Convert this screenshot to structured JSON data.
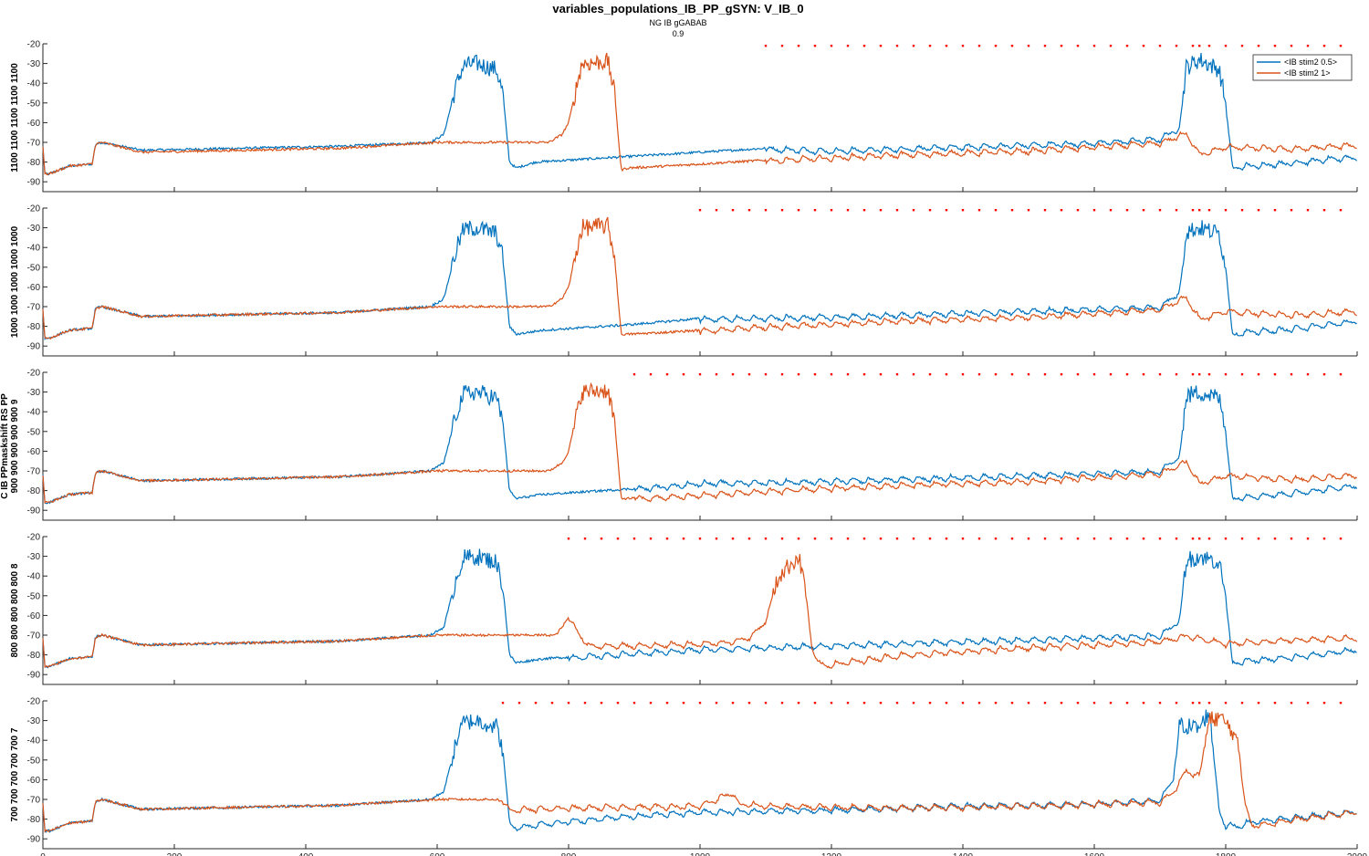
{
  "figure": {
    "title": "variables_populations_IB_PP_gSYN: V_IB_0",
    "subtitle_line1": "NG IB gGABAB",
    "subtitle_line2": "0.9",
    "ylabel_lines": [
      "C IB PPmaskshift RS PP",
      "900 900 900 900 900 9"
    ]
  },
  "chart_data": [
    {
      "type": "line",
      "panel_ylabel": "1100 1100 1100 1100 1100",
      "xlim": [
        0,
        2000
      ],
      "ylim": [
        -95,
        -20
      ],
      "xticks": [
        0,
        200,
        400,
        600,
        800,
        1000,
        1200,
        1400,
        1600,
        1800,
        2000
      ],
      "yticks": [
        -90,
        -80,
        -70,
        -60,
        -50,
        -40,
        -30,
        -20
      ],
      "stim_markers": [
        1100,
        1125,
        1150,
        1175,
        1200,
        1225,
        1250,
        1275,
        1300,
        1325,
        1350,
        1375,
        1400,
        1425,
        1450,
        1475,
        1500,
        1525,
        1550,
        1575,
        1600,
        1625,
        1650,
        1675,
        1700,
        1725,
        1750,
        1760,
        1775,
        1800,
        1825,
        1850,
        1875,
        1900,
        1925,
        1950,
        1975
      ],
      "series": [
        {
          "name": "<IB stim2 0.5>",
          "color": "#0072BD",
          "x": [
            0,
            3,
            10,
            40,
            75,
            80,
            90,
            150,
            300,
            450,
            590,
            610,
            630,
            640,
            660,
            690,
            700,
            710,
            720,
            750,
            900,
            1100,
            1200,
            1400,
            1600,
            1700,
            1730,
            1740,
            1760,
            1790,
            1800,
            1810,
            1820,
            1900,
            2000
          ],
          "y": [
            -72,
            -86,
            -86,
            -82,
            -81,
            -71,
            -70,
            -74,
            -73,
            -72,
            -70,
            -66,
            -40,
            -31,
            -30,
            -33,
            -45,
            -80,
            -83,
            -80,
            -77,
            -73,
            -74,
            -72,
            -70,
            -68,
            -62,
            -32,
            -28,
            -33,
            -50,
            -83,
            -82,
            -80,
            -77
          ]
        },
        {
          "name": "<IB stim2 1>",
          "color": "#D95319",
          "x": [
            0,
            3,
            10,
            40,
            75,
            80,
            90,
            150,
            300,
            450,
            600,
            770,
            790,
            800,
            820,
            860,
            870,
            880,
            890,
            950,
            1100,
            1300,
            1500,
            1700,
            1740,
            1750,
            1760,
            1800,
            1900,
            2000
          ],
          "y": [
            -72,
            -86,
            -86,
            -82,
            -81,
            -71,
            -70,
            -75,
            -74,
            -73,
            -70,
            -70,
            -66,
            -60,
            -30,
            -29,
            -45,
            -84,
            -83,
            -82,
            -79,
            -76,
            -74,
            -70,
            -65,
            -70,
            -76,
            -72,
            -73,
            -71
          ]
        }
      ]
    },
    {
      "type": "line",
      "panel_ylabel": "1000 1000 1000 1000 1000",
      "xlim": [
        0,
        2000
      ],
      "ylim": [
        -95,
        -20
      ],
      "xticks": [
        0,
        200,
        400,
        600,
        800,
        1000,
        1200,
        1400,
        1600,
        1800,
        2000
      ],
      "yticks": [
        -90,
        -80,
        -70,
        -60,
        -50,
        -40,
        -30,
        -20
      ],
      "stim_markers": [
        1000,
        1025,
        1050,
        1075,
        1100,
        1125,
        1150,
        1175,
        1200,
        1225,
        1250,
        1275,
        1300,
        1325,
        1350,
        1375,
        1400,
        1425,
        1450,
        1475,
        1500,
        1525,
        1550,
        1575,
        1600,
        1625,
        1650,
        1675,
        1700,
        1725,
        1750,
        1760,
        1775,
        1800,
        1825,
        1850,
        1875,
        1900,
        1925,
        1950,
        1975
      ],
      "series": [
        {
          "name": "<IB stim2 0.5>",
          "color": "#0072BD",
          "x": [
            0,
            3,
            10,
            40,
            75,
            80,
            90,
            150,
            300,
            450,
            590,
            610,
            630,
            640,
            660,
            690,
            700,
            710,
            720,
            760,
            900,
            1000,
            1200,
            1400,
            1600,
            1700,
            1730,
            1740,
            1760,
            1790,
            1800,
            1810,
            1820,
            1900,
            2000
          ],
          "y": [
            -72,
            -86,
            -86,
            -82,
            -81,
            -71,
            -70,
            -75,
            -74,
            -73,
            -70,
            -66,
            -40,
            -31,
            -30,
            -33,
            -45,
            -80,
            -84,
            -82,
            -79,
            -76,
            -75,
            -73,
            -71,
            -70,
            -62,
            -32,
            -30,
            -33,
            -50,
            -84,
            -83,
            -81,
            -77
          ]
        },
        {
          "name": "<IB stim2 1>",
          "color": "#D95319",
          "x": [
            0,
            3,
            10,
            40,
            75,
            80,
            90,
            150,
            300,
            450,
            600,
            770,
            790,
            800,
            820,
            860,
            870,
            880,
            890,
            950,
            1100,
            1300,
            1500,
            1700,
            1740,
            1750,
            1760,
            1800,
            1900,
            2000
          ],
          "y": [
            -72,
            -86,
            -86,
            -82,
            -81,
            -71,
            -70,
            -75,
            -74,
            -73,
            -70,
            -70,
            -66,
            -60,
            -30,
            -29,
            -45,
            -84,
            -84,
            -83,
            -80,
            -77,
            -75,
            -71,
            -65,
            -70,
            -76,
            -72,
            -74,
            -72
          ]
        }
      ]
    },
    {
      "type": "line",
      "panel_ylabel": "900 900 900 900 900 9",
      "xlim": [
        0,
        2000
      ],
      "ylim": [
        -95,
        -20
      ],
      "xticks": [
        0,
        200,
        400,
        600,
        800,
        1000,
        1200,
        1400,
        1600,
        1800,
        2000
      ],
      "yticks": [
        -90,
        -80,
        -70,
        -60,
        -50,
        -40,
        -30,
        -20
      ],
      "stim_markers": [
        900,
        925,
        950,
        975,
        1000,
        1025,
        1050,
        1075,
        1100,
        1125,
        1150,
        1175,
        1200,
        1225,
        1250,
        1275,
        1300,
        1325,
        1350,
        1375,
        1400,
        1425,
        1450,
        1475,
        1500,
        1525,
        1550,
        1575,
        1600,
        1625,
        1650,
        1675,
        1700,
        1725,
        1750,
        1760,
        1775,
        1800,
        1825,
        1850,
        1875,
        1900,
        1925,
        1950,
        1975
      ],
      "series": [
        {
          "name": "<IB stim2 0.5>",
          "color": "#0072BD",
          "x": [
            0,
            3,
            10,
            40,
            75,
            80,
            90,
            150,
            300,
            450,
            590,
            610,
            630,
            640,
            660,
            690,
            700,
            710,
            720,
            760,
            900,
            1000,
            1200,
            1400,
            1600,
            1700,
            1730,
            1740,
            1760,
            1790,
            1800,
            1810,
            1820,
            1900,
            2000
          ],
          "y": [
            -72,
            -86,
            -86,
            -82,
            -81,
            -71,
            -70,
            -75,
            -74,
            -73,
            -70,
            -66,
            -40,
            -31,
            -30,
            -33,
            -45,
            -80,
            -84,
            -82,
            -79,
            -76,
            -75,
            -73,
            -71,
            -70,
            -62,
            -32,
            -30,
            -33,
            -50,
            -84,
            -83,
            -81,
            -77
          ]
        },
        {
          "name": "<IB stim2 1>",
          "color": "#D95319",
          "x": [
            0,
            3,
            10,
            40,
            75,
            80,
            90,
            150,
            300,
            450,
            600,
            770,
            790,
            800,
            820,
            860,
            870,
            880,
            890,
            950,
            1100,
            1300,
            1500,
            1700,
            1740,
            1750,
            1760,
            1800,
            1900,
            2000
          ],
          "y": [
            -72,
            -86,
            -86,
            -82,
            -81,
            -71,
            -70,
            -75,
            -74,
            -73,
            -70,
            -70,
            -66,
            -60,
            -30,
            -29,
            -45,
            -84,
            -84,
            -83,
            -80,
            -77,
            -75,
            -71,
            -65,
            -70,
            -76,
            -72,
            -74,
            -72
          ]
        }
      ]
    },
    {
      "type": "line",
      "panel_ylabel": "800 800 800 800 800 8",
      "xlim": [
        0,
        2000
      ],
      "ylim": [
        -95,
        -20
      ],
      "xticks": [
        0,
        200,
        400,
        600,
        800,
        1000,
        1200,
        1400,
        1600,
        1800,
        2000
      ],
      "yticks": [
        -90,
        -80,
        -70,
        -60,
        -50,
        -40,
        -30,
        -20
      ],
      "stim_markers": [
        800,
        825,
        850,
        875,
        900,
        925,
        950,
        975,
        1000,
        1025,
        1050,
        1075,
        1100,
        1125,
        1150,
        1175,
        1200,
        1225,
        1250,
        1275,
        1300,
        1325,
        1350,
        1375,
        1400,
        1425,
        1450,
        1475,
        1500,
        1525,
        1550,
        1575,
        1600,
        1625,
        1650,
        1675,
        1700,
        1725,
        1750,
        1760,
        1775,
        1800,
        1825,
        1850,
        1875,
        1900,
        1925,
        1950,
        1975
      ],
      "series": [
        {
          "name": "<IB stim2 0.5>",
          "color": "#0072BD",
          "x": [
            0,
            3,
            10,
            40,
            75,
            80,
            90,
            150,
            300,
            450,
            590,
            610,
            630,
            640,
            660,
            690,
            700,
            710,
            720,
            760,
            900,
            1000,
            1200,
            1400,
            1600,
            1700,
            1730,
            1740,
            1760,
            1790,
            1800,
            1810,
            1820,
            1900,
            2000
          ],
          "y": [
            -72,
            -86,
            -86,
            -82,
            -81,
            -71,
            -70,
            -75,
            -74,
            -73,
            -70,
            -66,
            -40,
            -31,
            -30,
            -33,
            -45,
            -80,
            -84,
            -82,
            -79,
            -77,
            -75,
            -73,
            -71,
            -70,
            -62,
            -32,
            -30,
            -33,
            -50,
            -84,
            -83,
            -81,
            -77
          ]
        },
        {
          "name": "<IB stim2 1>",
          "color": "#D95319",
          "x": [
            0,
            3,
            10,
            40,
            75,
            80,
            90,
            150,
            300,
            450,
            600,
            780,
            790,
            800,
            810,
            830,
            900,
            1000,
            1050,
            1080,
            1100,
            1120,
            1150,
            1160,
            1170,
            1180,
            1190,
            1300,
            1500,
            1700,
            1740,
            1800,
            1900,
            2000
          ],
          "y": [
            -72,
            -86,
            -86,
            -82,
            -81,
            -71,
            -70,
            -75,
            -74,
            -73,
            -70,
            -70,
            -66,
            -61,
            -66,
            -75,
            -75,
            -74,
            -73,
            -70,
            -62,
            -40,
            -30,
            -45,
            -75,
            -84,
            -85,
            -80,
            -76,
            -73,
            -70,
            -74,
            -72,
            -71
          ]
        }
      ]
    },
    {
      "type": "line",
      "panel_ylabel": "700 700 700 700 700 7",
      "xlim": [
        0,
        2000
      ],
      "ylim": [
        -95,
        -20
      ],
      "xticks": [
        0,
        200,
        400,
        600,
        800,
        1000,
        1200,
        1400,
        1600,
        1800,
        2000
      ],
      "xticklabels": [
        "0",
        "200",
        "400",
        "600",
        "800",
        "1000",
        "1200",
        "1400",
        "1600",
        "1800",
        "2000"
      ],
      "yticks": [
        -90,
        -80,
        -70,
        -60,
        -50,
        -40,
        -30,
        -20
      ],
      "stim_markers": [
        700,
        725,
        750,
        775,
        800,
        825,
        850,
        875,
        900,
        925,
        950,
        975,
        1000,
        1025,
        1050,
        1075,
        1100,
        1125,
        1150,
        1175,
        1200,
        1225,
        1250,
        1275,
        1300,
        1325,
        1350,
        1375,
        1400,
        1425,
        1450,
        1475,
        1500,
        1525,
        1550,
        1575,
        1600,
        1625,
        1650,
        1675,
        1700,
        1725,
        1750,
        1760,
        1775,
        1800,
        1825,
        1850,
        1875,
        1900,
        1925,
        1950,
        1975
      ],
      "series": [
        {
          "name": "<IB stim2 0.5>",
          "color": "#0072BD",
          "x": [
            0,
            3,
            10,
            40,
            75,
            80,
            90,
            150,
            300,
            450,
            590,
            610,
            630,
            640,
            660,
            690,
            700,
            710,
            720,
            760,
            900,
            1000,
            1200,
            1400,
            1600,
            1700,
            1720,
            1730,
            1760,
            1775,
            1790,
            1800,
            1820,
            1840,
            1900,
            2000
          ],
          "y": [
            -72,
            -86,
            -86,
            -82,
            -81,
            -71,
            -70,
            -75,
            -74,
            -73,
            -70,
            -66,
            -40,
            -31,
            -30,
            -33,
            -45,
            -82,
            -84,
            -82,
            -78,
            -76,
            -75,
            -73,
            -72,
            -70,
            -60,
            -32,
            -34,
            -25,
            -75,
            -83,
            -83,
            -81,
            -79,
            -76
          ]
        },
        {
          "name": "<IB stim2 1>",
          "color": "#D95319",
          "x": [
            0,
            3,
            10,
            40,
            75,
            80,
            90,
            150,
            300,
            450,
            600,
            690,
            700,
            710,
            800,
            1000,
            1050,
            1060,
            1070,
            1100,
            1300,
            1500,
            1700,
            1720,
            1740,
            1760,
            1775,
            1790,
            1810,
            1820,
            1830,
            1840,
            1900,
            2000
          ],
          "y": [
            -72,
            -86,
            -86,
            -82,
            -81,
            -71,
            -70,
            -75,
            -74,
            -73,
            -70,
            -70,
            -71,
            -75,
            -74,
            -73,
            -66,
            -73,
            -72,
            -73,
            -74,
            -73,
            -71,
            -66,
            -55,
            -58,
            -30,
            -28,
            -35,
            -45,
            -73,
            -83,
            -80,
            -76
          ]
        }
      ]
    }
  ],
  "legend": {
    "placement": "top-right",
    "items": [
      {
        "label": "<IB stim2 0.5>",
        "color": "#0072BD"
      },
      {
        "label": "<IB stim2 1>",
        "color": "#D95319"
      }
    ]
  },
  "marker_color": "#FF0000"
}
